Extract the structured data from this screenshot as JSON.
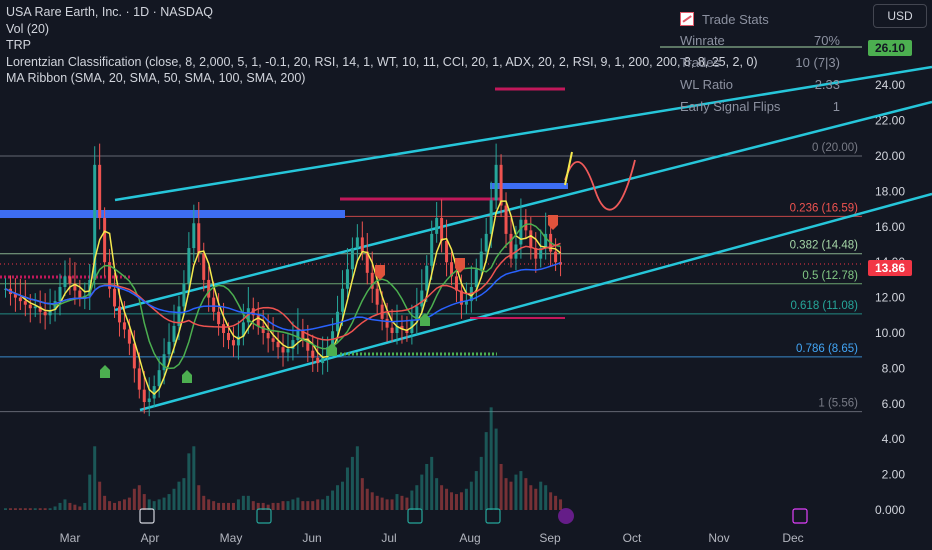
{
  "legend": {
    "title": "USA Rare Earth, Inc. · 1D · NASDAQ",
    "line2": "Vol (20)",
    "line3": "TRP",
    "line4": "Lorentzian Classification (close, 8, 2,000, 5, 1, -0.1, 20, RSI, 14, 1, WT, 10, 11, CCI, 20, 1, ADX, 20, 2, RSI, 9, 1, 200, 200, 8, 8, 25, 2, 0)",
    "line5": "MA Ribbon (SMA, 20, SMA, 50, SMA, 100, SMA, 200)"
  },
  "currency": "USD",
  "trade_stats": {
    "title": "Trade Stats",
    "rows": [
      {
        "label": "Winrate",
        "value": "70%"
      },
      {
        "label": "Trades",
        "value": "10 (7|3)"
      },
      {
        "label": "WL Ratio",
        "value": "2.33"
      },
      {
        "label": "Early Signal Flips",
        "value": "1"
      }
    ]
  },
  "price_tags": {
    "top": "26.10",
    "last": "13.86"
  },
  "colors": {
    "background": "#131722",
    "channel": "#26c6da",
    "up": "#26a69a",
    "down": "#ef5350",
    "fib_236": "#ef5350",
    "fib_382": "#a5d6a7",
    "fib_618": "#26a69a",
    "fib_786": "#42a5f5",
    "tag_green": "#4caf50",
    "tag_red": "#f23645"
  },
  "chart_data": {
    "type": "candlestick",
    "y_axis": {
      "ticks": [
        "26.00",
        "24.00",
        "22.00",
        "20.00",
        "18.00",
        "16.00",
        "14.00",
        "12.00",
        "10.00",
        "8.00",
        "6.00",
        "4.00",
        "2.00",
        "0.000"
      ],
      "range": [
        0,
        28
      ]
    },
    "x_axis": {
      "labels": [
        "Mar",
        "Apr",
        "May",
        "Jun",
        "Jul",
        "Aug",
        "Sep",
        "Oct",
        "Nov",
        "Dec"
      ]
    },
    "fibonacci": [
      {
        "label": "0 (20.00)",
        "value": 20.0
      },
      {
        "label": "0.236 (16.59)",
        "value": 16.59
      },
      {
        "label": "0.382 (14.48)",
        "value": 14.48
      },
      {
        "label": "0.5 (12.78)",
        "value": 12.78
      },
      {
        "label": "0.618 (11.08)",
        "value": 11.08
      },
      {
        "label": "0.786 (8.65)",
        "value": 8.65
      },
      {
        "label": "1 (5.56)",
        "value": 5.56
      }
    ],
    "close_series": [
      12.5,
      12.2,
      12.0,
      11.8,
      11.6,
      11.4,
      11.5,
      11.2,
      11.0,
      11.3,
      11.8,
      12.6,
      13.2,
      12.8,
      12.4,
      12.0,
      12.1,
      13.0,
      19.5,
      16.5,
      14.0,
      12.5,
      11.5,
      10.6,
      10.2,
      9.4,
      8.0,
      6.8,
      6.1,
      6.3,
      7.0,
      7.9,
      8.8,
      9.5,
      10.4,
      11.5,
      12.8,
      14.8,
      16.2,
      14.5,
      13.0,
      12.0,
      11.2,
      10.5,
      10.0,
      9.6,
      9.3,
      9.8,
      10.6,
      11.4,
      11.0,
      10.4,
      10.0,
      9.7,
      9.5,
      9.2,
      8.9,
      9.1,
      9.6,
      10.2,
      9.7,
      9.0,
      8.6,
      8.3,
      8.6,
      9.2,
      10.1,
      11.2,
      12.5,
      13.6,
      14.8,
      15.4,
      14.6,
      13.4,
      12.5,
      11.6,
      10.8,
      10.3,
      10.0,
      10.4,
      10.2,
      10.0,
      10.7,
      11.5,
      12.4,
      13.8,
      15.6,
      16.5,
      15.2,
      14.0,
      13.2,
      12.4,
      11.6,
      11.8,
      12.6,
      13.6,
      14.6,
      15.6,
      17.5,
      19.5,
      17.2,
      15.6,
      14.2,
      15.0,
      16.4,
      15.8,
      14.8,
      14.2,
      14.8,
      15.6,
      14.6,
      14.0,
      13.86
    ],
    "volume_series": [
      0.1,
      0.1,
      0.1,
      0.1,
      0.1,
      0.1,
      0.1,
      0.1,
      0.1,
      0.1,
      0.2,
      0.4,
      0.6,
      0.4,
      0.3,
      0.2,
      0.4,
      2.0,
      3.6,
      1.6,
      0.8,
      0.5,
      0.4,
      0.5,
      0.6,
      0.7,
      1.2,
      1.4,
      0.9,
      0.6,
      0.5,
      0.6,
      0.7,
      0.9,
      1.2,
      1.6,
      1.8,
      3.2,
      3.6,
      1.4,
      0.8,
      0.6,
      0.5,
      0.4,
      0.4,
      0.4,
      0.4,
      0.6,
      0.8,
      0.8,
      0.5,
      0.4,
      0.4,
      0.3,
      0.4,
      0.4,
      0.5,
      0.5,
      0.6,
      0.7,
      0.5,
      0.5,
      0.5,
      0.6,
      0.6,
      0.8,
      1.1,
      1.4,
      1.6,
      2.4,
      3.0,
      3.6,
      1.8,
      1.2,
      1.0,
      0.8,
      0.7,
      0.6,
      0.6,
      0.9,
      0.8,
      0.7,
      1.1,
      1.4,
      2.0,
      2.6,
      3.0,
      1.8,
      1.4,
      1.2,
      1.0,
      0.9,
      1.0,
      1.2,
      1.6,
      2.2,
      3.0,
      4.4,
      5.8,
      4.6,
      2.6,
      1.8,
      1.6,
      2.0,
      2.2,
      1.8,
      1.4,
      1.2,
      1.6,
      1.4,
      1.0,
      0.8,
      0.6
    ]
  }
}
